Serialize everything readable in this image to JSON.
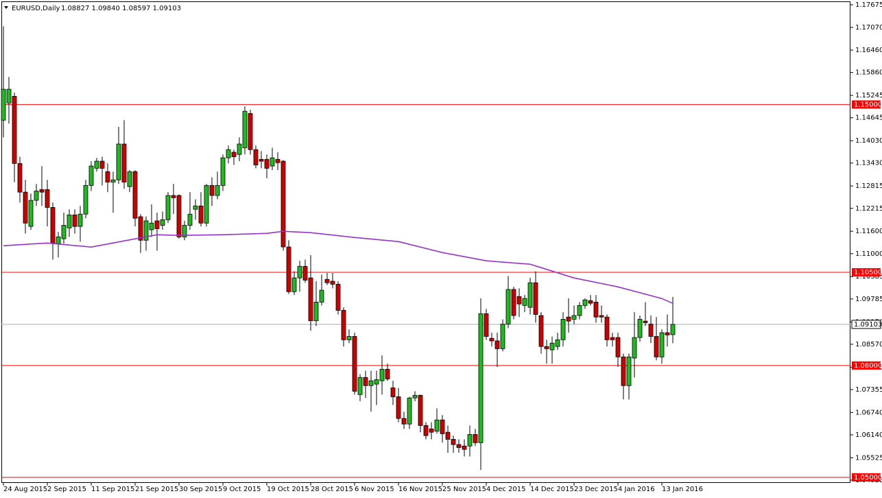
{
  "chart_data": {
    "type": "candlestick",
    "title": "EURUSD,Daily",
    "subtitle": "1.08827 1.09840 1.08597 1.09103",
    "categories": [
      "24 Aug 2015",
      null,
      null,
      null,
      null,
      null,
      null,
      null,
      "2 Sep 2015",
      null,
      null,
      null,
      null,
      null,
      null,
      null,
      "11 Sep 2015",
      null,
      null,
      null,
      null,
      null,
      null,
      null,
      "21 Sep 2015",
      null,
      null,
      null,
      null,
      null,
      null,
      null,
      "30 Sep 2015",
      null,
      null,
      null,
      null,
      null,
      null,
      null,
      "9 Oct 2015",
      null,
      null,
      null,
      null,
      null,
      null,
      null,
      "19 Oct 2015",
      null,
      null,
      null,
      null,
      null,
      null,
      null,
      "28 Oct 2015",
      null,
      null,
      null,
      null,
      null,
      null,
      null,
      "6 Nov 2015",
      null,
      null,
      null,
      null,
      null,
      null,
      null,
      "16 Nov 2015",
      null,
      null,
      null,
      null,
      null,
      null,
      null,
      "25 Nov 2015",
      null,
      null,
      null,
      null,
      null,
      null,
      null,
      "4 Dec 2015",
      null,
      null,
      null,
      null,
      null,
      null,
      null,
      "14 Dec 2015",
      null,
      null,
      null,
      null,
      null,
      null,
      null,
      "23 Dec 2015",
      null,
      null,
      null,
      null,
      null,
      null,
      null,
      "4 Jan 2016",
      null,
      null,
      null,
      null,
      null,
      null,
      null,
      "13 Jan 2016",
      null,
      null
    ],
    "open": [
      1.1458,
      1.1504,
      1.1522,
      1.1342,
      1.1265,
      1.1173,
      1.1243,
      1.1272,
      1.1272,
      1.1224,
      1.1127,
      1.114,
      1.1169,
      1.1204,
      1.1173,
      1.1206,
      1.1283,
      1.1329,
      1.1348,
      1.132,
      1.1292,
      1.1298,
      1.1394,
      1.128,
      1.132,
      1.1199,
      1.1136,
      1.1164,
      1.1188,
      1.1176,
      1.1191,
      1.1256,
      1.1256,
      1.1145,
      1.1176,
      1.1219,
      1.1228,
      1.1182,
      1.1283,
      1.1256,
      1.1283,
      1.1357,
      1.1372,
      1.1366,
      1.1384,
      1.1476,
      1.1379,
      1.1353,
      1.1353,
      1.1335,
      1.1353,
      1.1348,
      1.1118,
      1.0998,
      1.1035,
      1.1066,
      1.1035,
      1.092,
      1.097,
      1.1031,
      1.1026,
      1.1018,
      1.0948,
      1.0869,
      1.0878,
      1.0722,
      1.0768,
      1.0746,
      1.075,
      1.0759,
      1.079,
      1.074,
      1.0716,
      1.0658,
      1.0643,
      1.0713,
      1.072,
      1.0639,
      1.063,
      1.0624,
      1.0654,
      1.0621,
      1.0602,
      1.0588,
      1.0584,
      1.0584,
      1.0615,
      1.0593,
      1.0939,
      1.0873,
      1.0866,
      1.0845,
      1.0911,
      1.1004,
      1.0985,
      1.0961,
      1.0956,
      1.1022,
      1.0934,
      1.0851,
      1.0842,
      1.0851,
      1.0869,
      1.093,
      1.0924,
      1.0934,
      1.0961,
      1.0974,
      1.097,
      1.0934,
      1.093,
      1.0875,
      1.0875,
      1.0823,
      1.0746,
      1.082,
      1.0875,
      1.0919,
      1.0911,
      1.0878,
      1.0823,
      1.0888,
      1.08827
    ],
    "high": [
      1.171,
      1.1574,
      1.1532,
      1.136,
      1.1298,
      1.1261,
      1.1287,
      1.1335,
      1.1298,
      1.1237,
      1.1158,
      1.121,
      1.1219,
      1.1219,
      1.1228,
      1.1298,
      1.1348,
      1.1357,
      1.136,
      1.1342,
      1.132,
      1.144,
      1.1458,
      1.1324,
      1.1324,
      1.1206,
      1.12,
      1.1232,
      1.121,
      1.1213,
      1.1265,
      1.1287,
      1.1259,
      1.1188,
      1.1265,
      1.1246,
      1.1265,
      1.1287,
      1.1305,
      1.132,
      1.1366,
      1.139,
      1.1379,
      1.1412,
      1.1495,
      1.1486,
      1.139,
      1.1375,
      1.1366,
      1.1384,
      1.1372,
      1.1351,
      1.1136,
      1.1053,
      1.1081,
      1.1084,
      1.1096,
      1.1026,
      1.1044,
      1.1048,
      1.1048,
      1.1026,
      1.0956,
      1.0897,
      1.0888,
      1.0777,
      1.0786,
      1.0786,
      1.0786,
      1.0827,
      1.0805,
      1.0759,
      1.074,
      1.0676,
      1.0716,
      1.0731,
      1.0722,
      1.0648,
      1.0648,
      1.0685,
      1.0667,
      1.0639,
      1.0612,
      1.0602,
      1.0602,
      1.0639,
      1.063,
      1.098,
      1.0952,
      1.0888,
      1.0888,
      1.0924,
      1.104,
      1.1011,
      1.1007,
      1.0989,
      1.1035,
      1.1053,
      1.0943,
      1.0869,
      1.0878,
      1.0888,
      1.0943,
      1.098,
      1.0961,
      1.097,
      1.098,
      1.0989,
      1.0989,
      1.0961,
      1.0937,
      1.0888,
      1.0888,
      1.0832,
      1.0832,
      1.0943,
      1.0934,
      1.097,
      1.0934,
      1.093,
      1.0897,
      1.0937,
      1.0984
    ],
    "low": [
      1.1412,
      1.1449,
      1.1292,
      1.1237,
      1.1154,
      1.1164,
      1.1228,
      1.1228,
      1.1173,
      1.1084,
      1.109,
      1.1127,
      1.1145,
      1.1154,
      1.1132,
      1.1195,
      1.1268,
      1.132,
      1.1283,
      1.1265,
      1.121,
      1.1287,
      1.1274,
      1.1265,
      1.1173,
      1.1102,
      1.1108,
      1.1145,
      1.1108,
      1.1164,
      1.1182,
      1.1206,
      1.114,
      1.1136,
      1.1164,
      1.1191,
      1.1173,
      1.1173,
      1.1228,
      1.1246,
      1.1268,
      1.1342,
      1.1338,
      1.1348,
      1.1366,
      1.1366,
      1.1329,
      1.1329,
      1.1302,
      1.1324,
      1.1324,
      1.1108,
      1.0992,
      1.0989,
      1.0998,
      1.1022,
      1.0893,
      1.0906,
      1.0961,
      1.1016,
      1.1007,
      1.0937,
      1.0851,
      1.086,
      1.0722,
      1.0704,
      1.0713,
      1.0676,
      1.0694,
      1.0722,
      1.0759,
      1.0694,
      1.0648,
      1.063,
      1.063,
      1.0704,
      1.0621,
      1.0602,
      1.0602,
      1.0617,
      1.0593,
      1.0566,
      1.0566,
      1.0566,
      1.0556,
      1.0556,
      1.0584,
      1.052,
      1.0869,
      1.0851,
      1.0796,
      1.0838,
      1.09,
      1.0924,
      1.093,
      1.0943,
      1.0937,
      1.0915,
      1.0832,
      1.0805,
      1.0805,
      1.0842,
      1.0851,
      1.0888,
      1.0911,
      1.0924,
      1.0952,
      1.0961,
      1.0915,
      1.0915,
      1.0851,
      1.0851,
      1.0796,
      1.0709,
      1.0709,
      1.0768,
      1.0864,
      1.0906,
      1.086,
      1.0814,
      1.0805,
      1.0851,
      1.08597
    ],
    "close": [
      1.1541,
      1.1541,
      1.1342,
      1.1265,
      1.1182,
      1.1243,
      1.1268,
      1.1265,
      1.1224,
      1.1127,
      1.1145,
      1.1176,
      1.1204,
      1.1173,
      1.1206,
      1.1283,
      1.1335,
      1.1348,
      1.1329,
      1.1292,
      1.1298,
      1.1394,
      1.1292,
      1.132,
      1.1195,
      1.1136,
      1.1188,
      1.1182,
      1.1167,
      1.1191,
      1.1256,
      1.125,
      1.1145,
      1.1176,
      1.1206,
      1.1228,
      1.1182,
      1.1283,
      1.1256,
      1.1283,
      1.1357,
      1.1379,
      1.136,
      1.1394,
      1.1482,
      1.1379,
      1.1338,
      1.1348,
      1.1329,
      1.1357,
      1.1344,
      1.1118,
      1.0998,
      1.1035,
      1.1066,
      1.1029,
      1.092,
      1.097,
      1.1002,
      1.1022,
      1.1018,
      1.0948,
      1.0869,
      1.0878,
      1.0731,
      1.0768,
      1.0746,
      1.0759,
      1.0762,
      1.079,
      1.0764,
      1.0716,
      1.0658,
      1.0643,
      1.0713,
      1.072,
      1.0639,
      1.0612,
      1.0621,
      1.0654,
      1.0617,
      1.0602,
      1.0588,
      1.058,
      1.0575,
      1.0615,
      1.0593,
      1.0939,
      1.0878,
      1.0866,
      1.0845,
      1.0911,
      1.1004,
      1.0934,
      1.0965,
      1.098,
      1.1022,
      1.0937,
      1.0851,
      1.0845,
      1.086,
      1.0869,
      1.0924,
      1.0919,
      1.0934,
      1.0961,
      1.0976,
      1.0967,
      1.093,
      1.093,
      1.0869,
      1.0869,
      1.0823,
      1.0746,
      1.0823,
      1.0875,
      1.0924,
      1.0915,
      1.0878,
      1.0823,
      1.0888,
      1.0882,
      1.09103
    ],
    "up_color": "#22b822",
    "down_color": "#cc0000",
    "ma": {
      "color": "#9932cc",
      "x": [
        0,
        8,
        16,
        24,
        28,
        32,
        40,
        48,
        51,
        56,
        64,
        72,
        80,
        88,
        96,
        104,
        112,
        120,
        122
      ],
      "values": [
        1.11213,
        1.11286,
        1.11176,
        1.11397,
        1.11507,
        1.11489,
        1.11507,
        1.11544,
        1.11599,
        1.11562,
        1.11434,
        1.11323,
        1.11029,
        1.10808,
        1.10716,
        1.10348,
        1.10109,
        1.09796,
        1.09667
      ]
    },
    "hlines": [
      {
        "value": 1.15,
        "label": "1.15000"
      },
      {
        "value": 1.105,
        "label": "1.10500"
      },
      {
        "value": 1.08,
        "label": "1.08000"
      },
      {
        "value": 1.05,
        "label": "1.05000"
      }
    ],
    "hline_color": "#ff0000",
    "last_price": 1.09103,
    "ylim": [
      1.04851,
      1.17767
    ],
    "yticks": [
      1.17675,
      {
        "value": 1.1707,
        "label": "1.17070"
      },
      {
        "value": 1.1646,
        "label": "1.16460"
      },
      {
        "value": 1.1586,
        "label": "1.15860"
      },
      1.15245,
      1.14645,
      {
        "value": 1.1403,
        "label": "1.14030"
      },
      {
        "value": 1.1343,
        "label": "1.13430"
      },
      1.12815,
      1.12215,
      {
        "value": 1.116,
        "label": "1.11600"
      },
      {
        "value": 1.11,
        "label": "1.11000"
      },
      1.10385,
      1.09785,
      {
        "value": 1.0917,
        "label": "1.09170"
      },
      {
        "value": 1.0857,
        "label": "1.08570"
      },
      1.07955,
      1.07355,
      {
        "value": 1.0674,
        "label": "1.06740"
      },
      {
        "value": 1.0614,
        "label": "1.06140"
      },
      1.05525,
      1.04925
    ]
  }
}
